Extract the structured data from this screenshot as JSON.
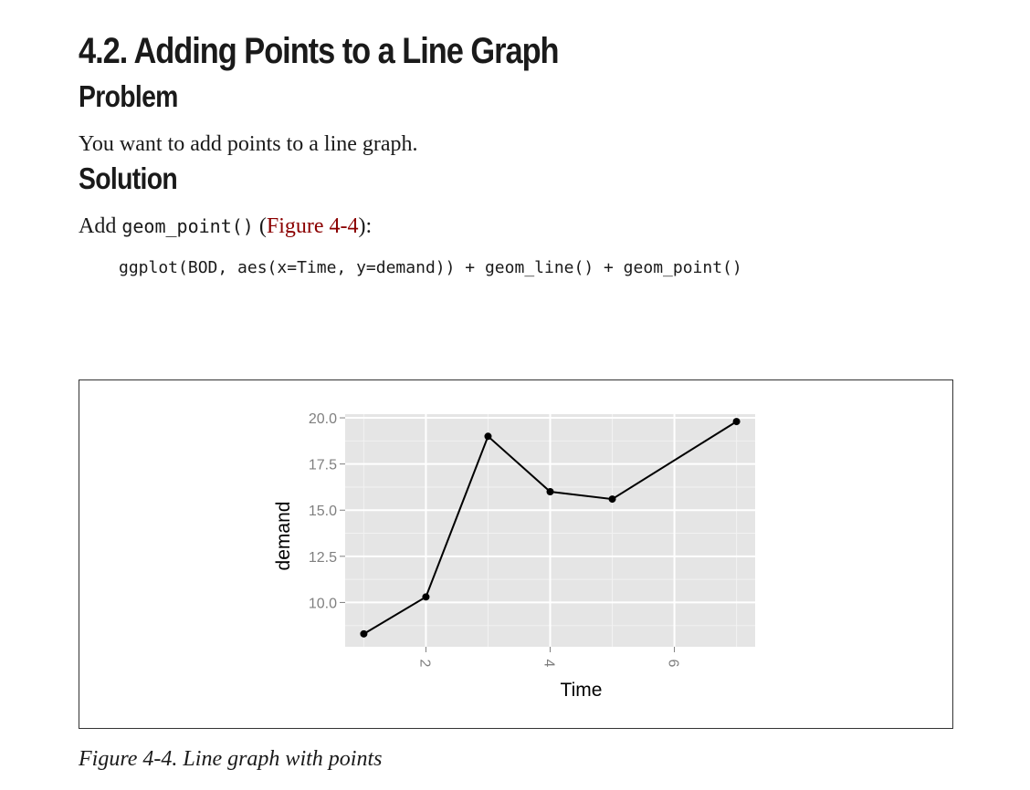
{
  "section_title": "4.2. Adding Points to a Line Graph",
  "problem": {
    "heading": "Problem",
    "text": "You want to add points to a line graph."
  },
  "solution": {
    "heading": "Solution",
    "intro_prefix": "Add ",
    "intro_code": "geom_point()",
    "intro_link_open": " (",
    "intro_link": "Figure 4-4",
    "intro_suffix": "):",
    "code": "ggplot(BOD, aes(x=Time, y=demand)) + geom_line() + geom_point()"
  },
  "figure": {
    "caption": "Figure 4-4. Line graph with points"
  },
  "colors": {
    "panel_bg": "#e5e5e5",
    "grid": "#ffffff",
    "tick_text": "#7f7f7f",
    "link": "#8b0000",
    "line": "#000000"
  },
  "chart_data": {
    "type": "line",
    "title": "",
    "xlabel": "Time",
    "ylabel": "demand",
    "x": [
      1,
      2,
      3,
      4,
      5,
      7
    ],
    "y": [
      8.3,
      10.3,
      19.0,
      16.0,
      15.6,
      19.8
    ],
    "xlim": [
      0.7,
      7.3
    ],
    "ylim": [
      7.6,
      20.2
    ],
    "x_ticks": [
      2,
      4,
      6
    ],
    "x_tick_labels": [
      "2",
      "4",
      "6"
    ],
    "y_ticks": [
      10.0,
      12.5,
      15.0,
      17.5,
      20.0
    ],
    "y_tick_labels": [
      "10.0",
      "12.5",
      "15.0",
      "17.5",
      "20.0"
    ],
    "points": true,
    "grid": true,
    "legend": "none"
  }
}
